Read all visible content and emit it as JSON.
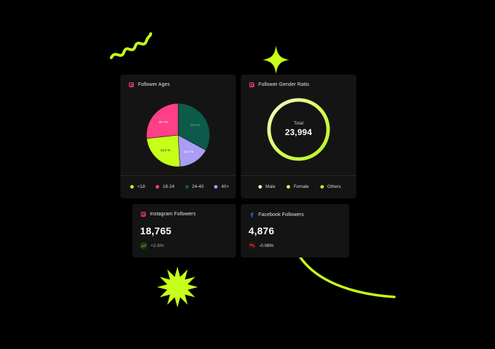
{
  "colors": {
    "accent": "#c6ff1a",
    "pink": "#ff3f86",
    "teal": "#0c5a49",
    "lavender": "#a99df4",
    "card_bg": "#141414",
    "positive": "#4caf2a",
    "negative": "#ff4040"
  },
  "follower_ages": {
    "title": "Follower Ages",
    "chart_data": {
      "type": "pie",
      "slices": [
        {
          "label": "<18",
          "value": 24.2,
          "display": "24.2 %",
          "color": "#c6ff1a"
        },
        {
          "label": "18-24",
          "value": 26.7,
          "display": "26.7%",
          "color": "#ff3f86"
        },
        {
          "label": "24-40",
          "value": 32.9,
          "display": "32.9 %",
          "color": "#0c5a49"
        },
        {
          "label": "40+",
          "value": 16.2,
          "display": "16.2 %",
          "color": "#a99df4"
        }
      ]
    },
    "legend": [
      {
        "label": "<18",
        "color": "#c6ff1a"
      },
      {
        "label": "18-24",
        "color": "#ff3f86"
      },
      {
        "label": "24-40",
        "color": "#0c5a49"
      },
      {
        "label": "40+",
        "color": "#a99df4"
      }
    ]
  },
  "gender_ratio": {
    "title": "Follower Gender Ratio",
    "total_label": "Total",
    "total_value": "23,994",
    "legend": [
      {
        "label": "Male",
        "color": "#eaffb3"
      },
      {
        "label": "Female",
        "color": "#d6ff52"
      },
      {
        "label": "Others",
        "color": "#b9f21c"
      }
    ]
  },
  "instagram": {
    "title": "Instagram Followers",
    "value": "18,765",
    "change": "+2.6%",
    "trend": "up-trend-icon"
  },
  "facebook": {
    "title": "Facebook Followers",
    "value": "4,876",
    "change": "-0.06%",
    "trend": "down-trend-icon"
  }
}
